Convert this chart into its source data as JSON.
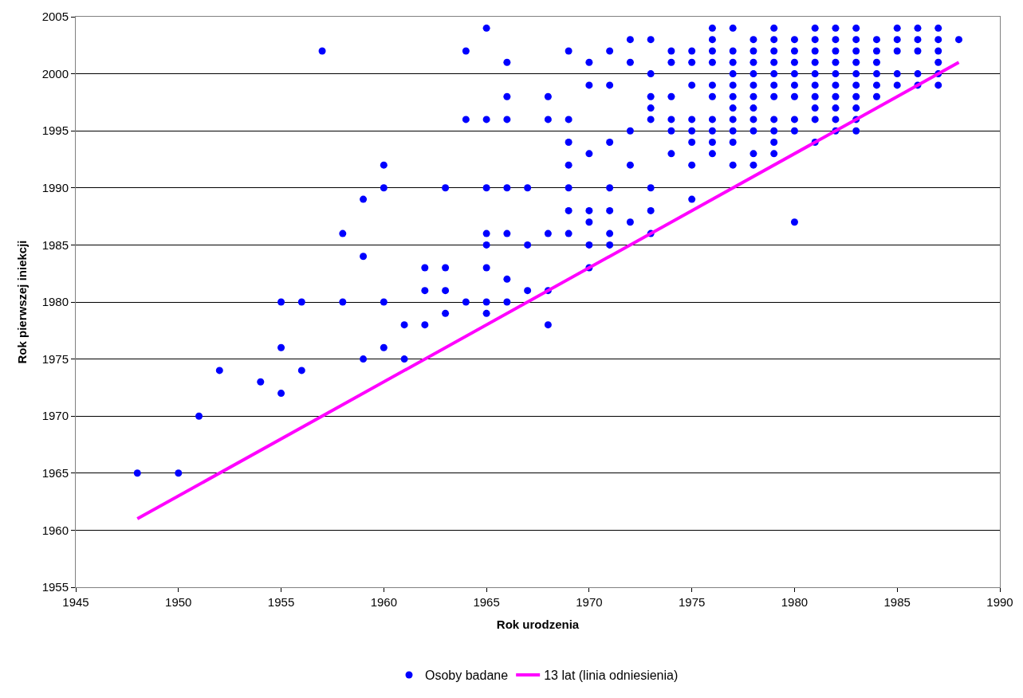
{
  "chart_data": {
    "type": "scatter",
    "xlabel": "Rok urodzenia",
    "ylabel": "Rok pierwszej iniekcji",
    "xlim": [
      1945,
      1990
    ],
    "xticks": [
      1945,
      1950,
      1955,
      1960,
      1965,
      1970,
      1975,
      1980,
      1985,
      1990
    ],
    "ylim": [
      1955,
      2005
    ],
    "yticks": [
      1955,
      1960,
      1965,
      1970,
      1975,
      1980,
      1985,
      1990,
      1995,
      2000,
      2005
    ],
    "grid": "y",
    "legend": "bottom",
    "series": [
      {
        "name": "Osoby badane",
        "marker": "circle",
        "color": "#0000ff",
        "x": [
          1948,
          1950,
          1951,
          1952,
          1954,
          1955,
          1955,
          1955,
          1956,
          1956,
          1957,
          1958,
          1958,
          1959,
          1959,
          1959,
          1960,
          1960,
          1960,
          1960,
          1961,
          1961,
          1962,
          1962,
          1962,
          1963,
          1963,
          1963,
          1963,
          1964,
          1964,
          1964,
          1965,
          1965,
          1965,
          1965,
          1965,
          1965,
          1965,
          1965,
          1966,
          1966,
          1966,
          1966,
          1966,
          1966,
          1966,
          1967,
          1967,
          1967,
          1968,
          1968,
          1968,
          1968,
          1968,
          1969,
          1969,
          1969,
          1969,
          1969,
          1969,
          1969,
          1970,
          1970,
          1970,
          1970,
          1970,
          1970,
          1970,
          1971,
          1971,
          1971,
          1971,
          1971,
          1971,
          1971,
          1972,
          1972,
          1972,
          1972,
          1972,
          1973,
          1973,
          1973,
          1973,
          1973,
          1973,
          1973,
          1973,
          1974,
          1974,
          1974,
          1974,
          1974,
          1974,
          1975,
          1975,
          1975,
          1975,
          1975,
          1975,
          1975,
          1975,
          1976,
          1976,
          1976,
          1976,
          1976,
          1976,
          1976,
          1976,
          1976,
          1976,
          1977,
          1977,
          1977,
          1977,
          1977,
          1977,
          1977,
          1977,
          1977,
          1977,
          1977,
          1978,
          1978,
          1978,
          1978,
          1978,
          1978,
          1978,
          1978,
          1978,
          1978,
          1978,
          1979,
          1979,
          1979,
          1979,
          1979,
          1979,
          1979,
          1979,
          1979,
          1979,
          1979,
          1980,
          1980,
          1980,
          1980,
          1980,
          1980,
          1980,
          1980,
          1980,
          1981,
          1981,
          1981,
          1981,
          1981,
          1981,
          1981,
          1981,
          1981,
          1981,
          1982,
          1982,
          1982,
          1982,
          1982,
          1982,
          1982,
          1982,
          1982,
          1982,
          1983,
          1983,
          1983,
          1983,
          1983,
          1983,
          1983,
          1983,
          1983,
          1983,
          1984,
          1984,
          1984,
          1984,
          1984,
          1984,
          1985,
          1985,
          1985,
          1985,
          1985,
          1986,
          1986,
          1986,
          1986,
          1986,
          1987,
          1987,
          1987,
          1987,
          1987,
          1987,
          1988
        ],
        "values": [
          1965,
          1965,
          1970,
          1974,
          1973,
          1980,
          1976,
          1972,
          1980,
          1974,
          2002,
          1986,
          1980,
          1989,
          1984,
          1975,
          1992,
          1990,
          1980,
          1976,
          1978,
          1975,
          1983,
          1981,
          1978,
          1990,
          1983,
          1981,
          1979,
          2002,
          1996,
          1980,
          2004,
          1996,
          1990,
          1986,
          1985,
          1983,
          1980,
          1979,
          2001,
          1998,
          1996,
          1990,
          1986,
          1982,
          1980,
          1990,
          1985,
          1981,
          1998,
          1996,
          1986,
          1981,
          1978,
          2002,
          1996,
          1994,
          1992,
          1990,
          1988,
          1986,
          2001,
          1999,
          1993,
          1988,
          1987,
          1985,
          1983,
          2002,
          1999,
          1994,
          1990,
          1988,
          1986,
          1985,
          2003,
          2001,
          1995,
          1992,
          1987,
          2003,
          2000,
          1998,
          1997,
          1996,
          1990,
          1988,
          1986,
          2002,
          2001,
          1998,
          1996,
          1995,
          1993,
          2002,
          2001,
          1999,
          1996,
          1995,
          1994,
          1992,
          1989,
          2004,
          2003,
          2002,
          2001,
          1999,
          1998,
          1996,
          1995,
          1994,
          1993,
          2004,
          2002,
          2001,
          2000,
          1999,
          1998,
          1997,
          1996,
          1995,
          1994,
          1992,
          2003,
          2002,
          2001,
          2000,
          1999,
          1998,
          1997,
          1996,
          1995,
          1993,
          1992,
          2004,
          2003,
          2002,
          2001,
          2000,
          1999,
          1998,
          1996,
          1995,
          1994,
          1993,
          2003,
          2002,
          2001,
          2000,
          1999,
          1998,
          1996,
          1995,
          1987,
          2004,
          2003,
          2002,
          2001,
          2000,
          1999,
          1998,
          1997,
          1996,
          1994,
          2004,
          2003,
          2002,
          2001,
          2000,
          1999,
          1998,
          1997,
          1996,
          1995,
          2004,
          2003,
          2002,
          2001,
          2000,
          1999,
          1998,
          1997,
          1996,
          1995,
          2003,
          2002,
          2001,
          2000,
          1999,
          1998,
          2004,
          2003,
          2002,
          2000,
          1999,
          2004,
          2003,
          2002,
          2000,
          1999,
          2004,
          2003,
          2002,
          2001,
          2000,
          1999,
          2003
        ]
      },
      {
        "name": "13 lat (linia odniesienia)",
        "type": "line",
        "color": "#ff00ff",
        "x": [
          1948,
          1988
        ],
        "values": [
          1961,
          2001
        ],
        "line_style": "solid",
        "marker": "none"
      }
    ]
  }
}
